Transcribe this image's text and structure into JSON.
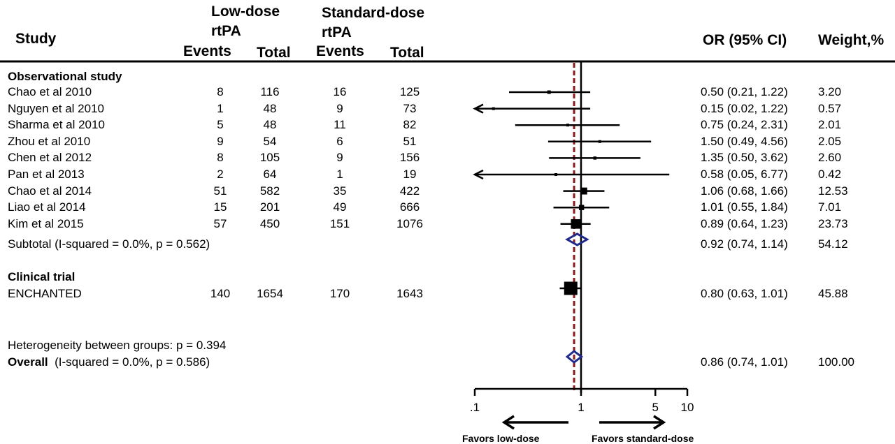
{
  "chart_data": {
    "type": "forest",
    "header": {
      "study": "Study",
      "low_group_line1": "Low-dose",
      "low_group_line2": "rtPA",
      "std_group_line1": "Standard-dose",
      "std_group_line2": "rtPA",
      "events": "Events",
      "total": "Total",
      "or": "OR (95% CI)",
      "weight": "Weight,%"
    },
    "groups": [
      {
        "label": "Observational study",
        "studies": [
          {
            "name": "Chao et al 2010",
            "low_events": "8",
            "low_total": "116",
            "std_events": "16",
            "std_total": "125",
            "or": 0.5,
            "lo": 0.21,
            "hi": 1.22,
            "ci_text": "0.50 (0.21, 1.22)",
            "weight": "3.20"
          },
          {
            "name": "Nguyen et al 2010",
            "low_events": "1",
            "low_total": "48",
            "std_events": "9",
            "std_total": "73",
            "or": 0.15,
            "lo": 0.02,
            "hi": 1.22,
            "ci_text": "0.15 (0.02, 1.22)",
            "weight": "0.57"
          },
          {
            "name": "Sharma et al 2010",
            "low_events": "5",
            "low_total": "48",
            "std_events": "11",
            "std_total": "82",
            "or": 0.75,
            "lo": 0.24,
            "hi": 2.31,
            "ci_text": "0.75 (0.24, 2.31)",
            "weight": "2.01"
          },
          {
            "name": "Zhou et al 2010",
            "low_events": "9",
            "low_total": "54",
            "std_events": "6",
            "std_total": "51",
            "or": 1.5,
            "lo": 0.49,
            "hi": 4.56,
            "ci_text": "1.50 (0.49, 4.56)",
            "weight": "2.05"
          },
          {
            "name": "Chen et al 2012",
            "low_events": "8",
            "low_total": "105",
            "std_events": "9",
            "std_total": "156",
            "or": 1.35,
            "lo": 0.5,
            "hi": 3.62,
            "ci_text": "1.35 (0.50, 3.62)",
            "weight": "2.60"
          },
          {
            "name": "Pan et al 2013",
            "low_events": "2",
            "low_total": "64",
            "std_events": "1",
            "std_total": "19",
            "or": 0.58,
            "lo": 0.05,
            "hi": 6.77,
            "ci_text": "0.58 (0.05, 6.77)",
            "weight": "0.42"
          },
          {
            "name": "Chao et al 2014",
            "low_events": "51",
            "low_total": "582",
            "std_events": "35",
            "std_total": "422",
            "or": 1.06,
            "lo": 0.68,
            "hi": 1.66,
            "ci_text": "1.06 (0.68, 1.66)",
            "weight": "12.53"
          },
          {
            "name": "Liao et al 2014",
            "low_events": "15",
            "low_total": "201",
            "std_events": "49",
            "std_total": "666",
            "or": 1.01,
            "lo": 0.55,
            "hi": 1.84,
            "ci_text": "1.01 (0.55, 1.84)",
            "weight": "7.01"
          },
          {
            "name": "Kim et al 2015",
            "low_events": "57",
            "low_total": "450",
            "std_events": "151",
            "std_total": "1076",
            "or": 0.89,
            "lo": 0.64,
            "hi": 1.23,
            "ci_text": "0.89 (0.64, 1.23)",
            "weight": "23.73"
          }
        ],
        "subtotal": {
          "label": "Subtotal  (I-squared = 0.0%, p = 0.562)",
          "or": 0.92,
          "lo": 0.74,
          "hi": 1.14,
          "ci_text": "0.92 (0.74, 1.14)",
          "weight": "54.12"
        }
      },
      {
        "label": "Clinical trial",
        "studies": [
          {
            "name": "ENCHANTED",
            "low_events": "140",
            "low_total": "1654",
            "std_events": "170",
            "std_total": "1643",
            "or": 0.8,
            "lo": 0.63,
            "hi": 1.01,
            "ci_text": "0.80 (0.63, 1.01)",
            "weight": "45.88"
          }
        ]
      }
    ],
    "heterogeneity": "Heterogeneity between groups: p = 0.394",
    "overall": {
      "label": "Overall",
      "detail": "(I-squared = 0.0%, p = 0.586)",
      "or": 0.86,
      "lo": 0.74,
      "hi": 1.01,
      "ci_text": "0.86 (0.74, 1.01)",
      "weight": "100.00"
    },
    "x_axis": {
      "scale": "log",
      "ticks": [
        0.1,
        1,
        5,
        10
      ],
      "tick_labels": [
        ".1",
        "1",
        "5",
        "10"
      ],
      "range": [
        0.1,
        10
      ],
      "null_value": 1
    },
    "favors_left": "Favors low-dose",
    "favors_right": "Favors standard-dose",
    "colors": {
      "marker": "#000000",
      "diamond": "#1f2a8c",
      "reference_line": "#8b1a1a"
    }
  }
}
